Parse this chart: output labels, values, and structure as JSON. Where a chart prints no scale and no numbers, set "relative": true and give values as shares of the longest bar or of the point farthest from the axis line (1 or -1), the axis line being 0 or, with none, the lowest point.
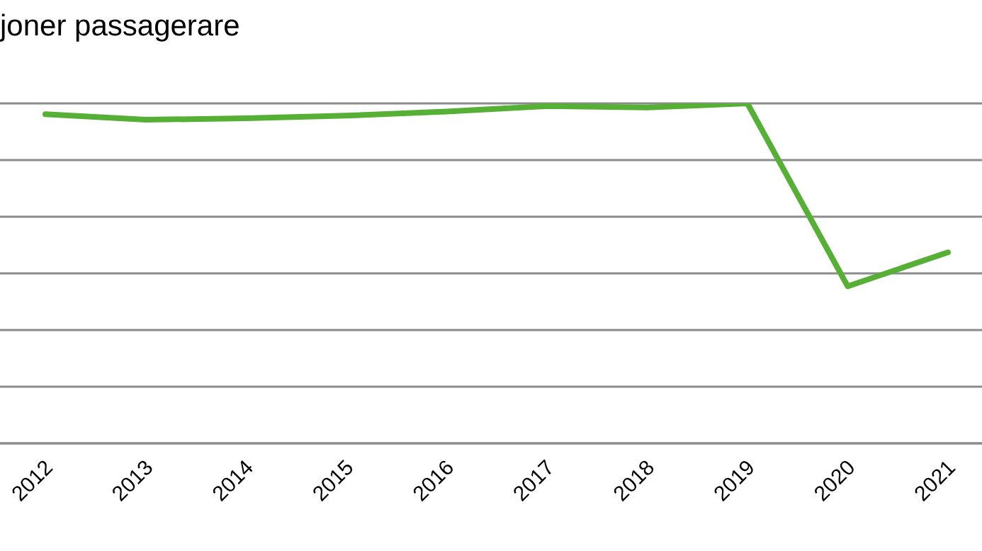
{
  "chart_data": {
    "type": "line",
    "title": "joner passagerare",
    "categories": [
      "2012",
      "2013",
      "2014",
      "2015",
      "2016",
      "2017",
      "2018",
      "2019",
      "2020",
      "2021"
    ],
    "series": [
      {
        "color": "#56b035",
        "values": [
          0.968,
          0.952,
          0.956,
          0.964,
          0.976,
          0.992,
          0.988,
          1,
          0.462,
          0.562
        ]
      }
    ],
    "relative": true,
    "grid": "y",
    "marker": "none",
    "line_style": "solid"
  }
}
